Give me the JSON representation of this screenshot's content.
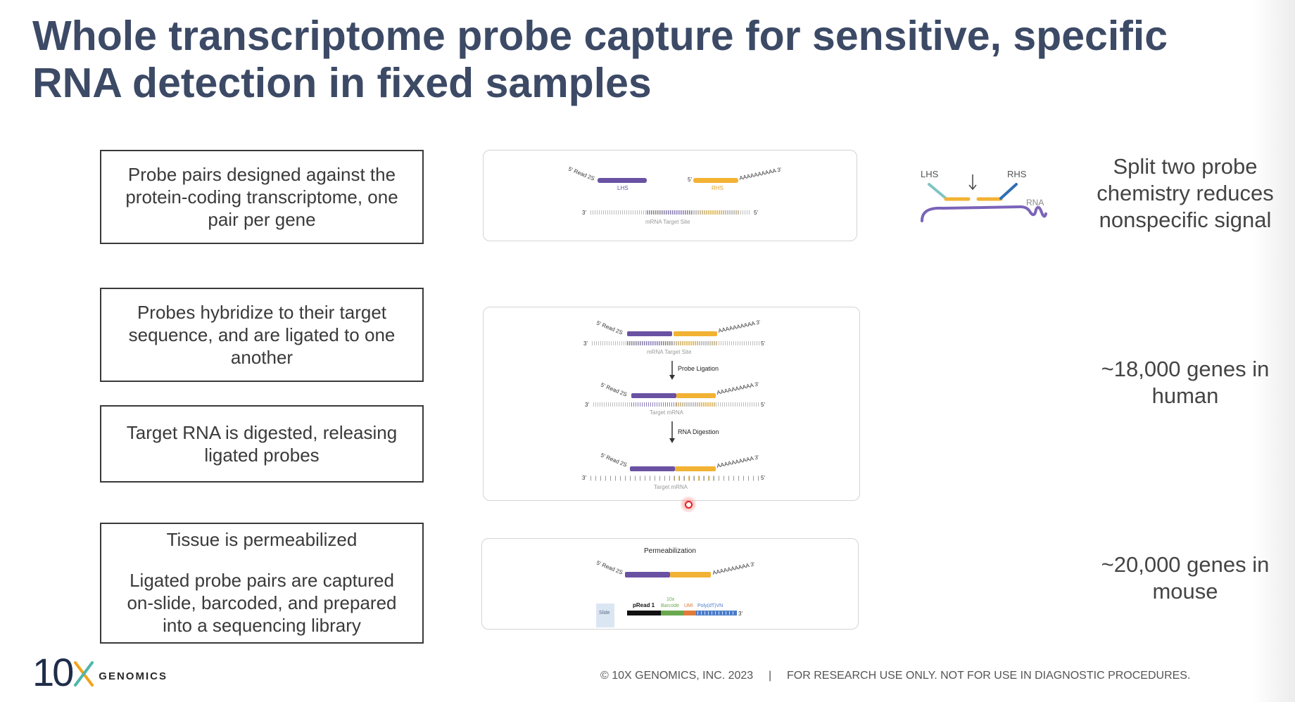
{
  "title": {
    "line1": "Whole transcriptome probe capture for sensitive, specific",
    "line2": "RNA detection in fixed samples"
  },
  "steps": [
    {
      "text": "Probe pairs designed against the protein-coding transcriptome, one pair per gene"
    },
    {
      "text": "Probes hybridize to their target sequence, and are ligated to one another"
    },
    {
      "text": "Target RNA is digested, releasing ligated probes"
    },
    {
      "text1": "Tissue is permeabilized",
      "text2": "Ligated probe pairs are captured on-slide, barcoded, and prepared into a sequencing library"
    }
  ],
  "diagram1": {
    "read2s": "5' Read 2S",
    "five_prime": "5'",
    "poly_a": "AAAAAAAAAA 3'",
    "lhs": "LHS",
    "rhs": "RHS",
    "three_prime": "3'",
    "five_prime_end": "5'",
    "target": "mRNA Target Site"
  },
  "diagram2": {
    "read2s": "5' Read 2S",
    "poly_a": "AAAAAAAAAA 3'",
    "three_prime": "3'",
    "five_prime": "5'",
    "target1": "mRNA Target Site",
    "step1": "Probe Ligation",
    "target2": "Target mRNA",
    "step2": "RNA Digestion",
    "target3": "Target mRNA"
  },
  "diagram3": {
    "title": "Permeabilization",
    "read2s": "5' Read 2S",
    "poly_a": "AAAAAAAAAA 3'",
    "slide": "Slide",
    "pread1": "pRead 1",
    "tenx": "10x",
    "barcode": "Barcode",
    "umi": "UMI",
    "polydt": "Poly(dT)VN",
    "three_prime": "3'"
  },
  "schematic": {
    "lhs": "LHS",
    "rhs": "RHS",
    "rna": "RNA"
  },
  "notes": [
    {
      "text": "Split two probe chemistry reduces nonspecific signal"
    },
    {
      "text": "~18,000 genes in human"
    },
    {
      "text": "~20,000 genes in mouse"
    }
  ],
  "footer": {
    "logo_number": "10",
    "logo_word": "GENOMICS",
    "copyright": "© 10X GENOMICS, INC. 2023",
    "separator": "|",
    "disclaimer": "FOR RESEARCH USE ONLY. NOT FOR USE IN DIAGNOSTIC PROCEDURES."
  },
  "colors": {
    "title": "#3c4a66",
    "lhs_purple": "#6a52a3",
    "rhs_yellow": "#f2b233",
    "teal": "#7fc4c4",
    "blue": "#2f6fb3"
  }
}
